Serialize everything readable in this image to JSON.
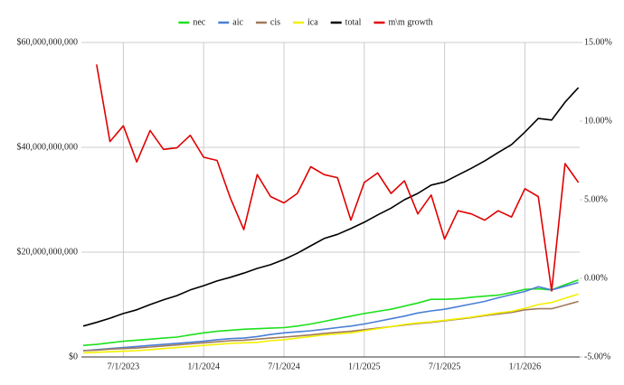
{
  "chart_data": {
    "type": "line",
    "categories": [
      null,
      null,
      null,
      "7/1/2023",
      null,
      null,
      null,
      null,
      null,
      "1/1/2024",
      null,
      null,
      null,
      null,
      null,
      "7/1/2024",
      null,
      null,
      null,
      null,
      null,
      "1/1/2025",
      null,
      null,
      null,
      null,
      null,
      "7/1/2025",
      null,
      null,
      null,
      null,
      null,
      "1/1/2026",
      null,
      null,
      null,
      null
    ],
    "ylim": [
      0,
      60000000000
    ],
    "yticks": [
      {
        "value": 0,
        "label": "$0"
      },
      {
        "value": 20000000000,
        "label": "$20,000,000,000"
      },
      {
        "value": 40000000000,
        "label": "$40,000,000,000"
      },
      {
        "value": 60000000000,
        "label": "$60,000,000,000"
      }
    ],
    "y2lim": [
      -5,
      15
    ],
    "y2ticks": [
      {
        "value": -5,
        "label": "-5.00%"
      },
      {
        "value": 0,
        "label": "0.00%"
      },
      {
        "value": 5,
        "label": "5.00%"
      },
      {
        "value": 10,
        "label": "10.00%"
      },
      {
        "value": 15,
        "label": "15.00%"
      }
    ],
    "grid": true,
    "legend": "top",
    "series": [
      {
        "name": "nec",
        "color": "#1ee01e",
        "values": [
          2200000000,
          2400000000,
          2700000000,
          3000000000,
          3200000000,
          3400000000,
          3600000000,
          3800000000,
          4200000000,
          4600000000,
          4900000000,
          5100000000,
          5300000000,
          5400000000,
          5500000000,
          5600000000,
          5900000000,
          6300000000,
          6800000000,
          7300000000,
          7800000000,
          8300000000,
          8700000000,
          9100000000,
          9700000000,
          10300000000,
          11000000000,
          11000000000,
          11100000000,
          11400000000,
          11600000000,
          11800000000,
          12300000000,
          12900000000,
          13000000000,
          12800000000,
          13800000000,
          14700000000
        ]
      },
      {
        "name": "aic",
        "color": "#4a7fd6",
        "values": [
          1200000000,
          1400000000,
          1600000000,
          1800000000,
          2000000000,
          2200000000,
          2400000000,
          2600000000,
          2800000000,
          3000000000,
          3300000000,
          3500000000,
          3600000000,
          3900000000,
          4300000000,
          4600000000,
          4800000000,
          5000000000,
          5300000000,
          5600000000,
          5900000000,
          6300000000,
          6800000000,
          7300000000,
          7800000000,
          8400000000,
          8800000000,
          9100000000,
          9600000000,
          10100000000,
          10600000000,
          11300000000,
          11900000000,
          12500000000,
          13400000000,
          12800000000,
          13500000000,
          14200000000
        ]
      },
      {
        "name": "cis",
        "color": "#a07a5e",
        "values": [
          1200000000,
          1300000000,
          1500000000,
          1600000000,
          1700000000,
          1900000000,
          2100000000,
          2300000000,
          2500000000,
          2700000000,
          2900000000,
          3100000000,
          3200000000,
          3400000000,
          3600000000,
          3800000000,
          4000000000,
          4200000000,
          4500000000,
          4700000000,
          4900000000,
          5200000000,
          5500000000,
          5800000000,
          6100000000,
          6400000000,
          6600000000,
          6900000000,
          7200000000,
          7500000000,
          7900000000,
          8200000000,
          8500000000,
          9000000000,
          9200000000,
          9200000000,
          9900000000,
          10600000000
        ]
      },
      {
        "name": "ica",
        "color": "#f2f000",
        "values": [
          800000000,
          900000000,
          1000000000,
          1100000000,
          1200000000,
          1400000000,
          1600000000,
          1800000000,
          2000000000,
          2200000000,
          2400000000,
          2600000000,
          2700000000,
          2800000000,
          3100000000,
          3300000000,
          3600000000,
          3900000000,
          4200000000,
          4400000000,
          4600000000,
          5000000000,
          5400000000,
          5800000000,
          6200000000,
          6500000000,
          6700000000,
          7000000000,
          7300000000,
          7600000000,
          8000000000,
          8400000000,
          8700000000,
          9300000000,
          10000000000,
          10400000000,
          11200000000,
          12000000000
        ]
      },
      {
        "name": "total",
        "color": "#000000",
        "values": [
          5900000000,
          6600000000,
          7400000000,
          8300000000,
          9000000000,
          10000000000,
          10900000000,
          11700000000,
          12800000000,
          13600000000,
          14500000000,
          15200000000,
          16000000000,
          16900000000,
          17600000000,
          18600000000,
          19800000000,
          21200000000,
          22600000000,
          23400000000,
          24500000000,
          25700000000,
          27100000000,
          28400000000,
          30000000000,
          31200000000,
          32800000000,
          33400000000,
          34700000000,
          36000000000,
          37400000000,
          39000000000,
          40500000000,
          42900000000,
          45500000000,
          45200000000,
          48600000000,
          51400000000
        ]
      },
      {
        "name": "m\\m growth",
        "color": "#e00000",
        "axis": "y2",
        "values": [
          null,
          13.6,
          8.7,
          9.7,
          7.4,
          9.4,
          8.2,
          8.3,
          9.1,
          7.7,
          7.5,
          5.1,
          3.1,
          6.6,
          5.2,
          4.8,
          5.4,
          7.1,
          6.6,
          6.4,
          3.7,
          6.1,
          6.7,
          5.4,
          6.2,
          4.1,
          5.3,
          2.5,
          4.3,
          4.1,
          3.7,
          4.3,
          3.9,
          5.7,
          5.2,
          -0.8,
          7.3,
          6.1
        ]
      }
    ]
  }
}
